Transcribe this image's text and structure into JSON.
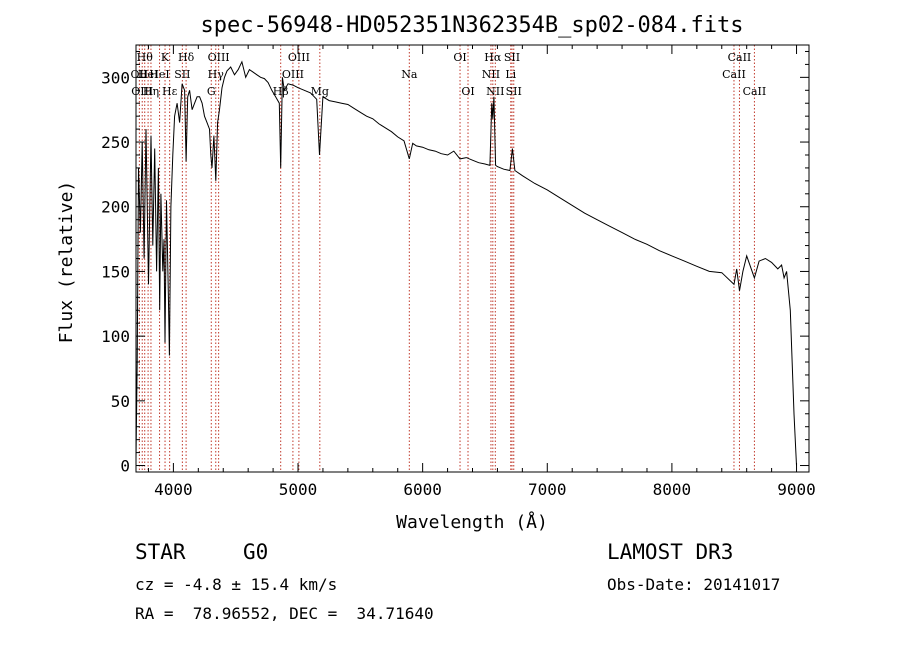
{
  "chart_data": {
    "type": "line",
    "title": "spec-56948-HD052351N362354B_sp02-084.fits",
    "xlabel": "Wavelength (Å)",
    "ylabel": "Flux (relative)",
    "xlim": [
      3700,
      9100
    ],
    "ylim": [
      -5,
      325
    ],
    "xticks": [
      4000,
      5000,
      6000,
      7000,
      8000,
      9000
    ],
    "yticks": [
      0,
      50,
      100,
      150,
      200,
      250,
      300
    ],
    "spectrum": {
      "wavelength": [
        3700,
        3710,
        3720,
        3735,
        3750,
        3765,
        3780,
        3800,
        3820,
        3835,
        3850,
        3865,
        3880,
        3890,
        3900,
        3915,
        3925,
        3933,
        3945,
        3960,
        3968,
        3980,
        3995,
        4010,
        4030,
        4050,
        4070,
        4090,
        4102,
        4115,
        4130,
        4150,
        4170,
        4190,
        4210,
        4230,
        4250,
        4270,
        4290,
        4300,
        4310,
        4325,
        4340,
        4355,
        4370,
        4390,
        4410,
        4430,
        4460,
        4490,
        4520,
        4550,
        4580,
        4610,
        4640,
        4670,
        4700,
        4730,
        4760,
        4790,
        4820,
        4850,
        4861,
        4875,
        4890,
        4920,
        4960,
        5000,
        5050,
        5100,
        5150,
        5172,
        5200,
        5250,
        5300,
        5350,
        5400,
        5450,
        5500,
        5550,
        5600,
        5650,
        5700,
        5750,
        5800,
        5850,
        5893,
        5920,
        5950,
        6000,
        6050,
        6100,
        6150,
        6200,
        6250,
        6300,
        6350,
        6400,
        6450,
        6500,
        6540,
        6555,
        6563,
        6572,
        6585,
        6600,
        6650,
        6700,
        6720,
        6740,
        6800,
        6900,
        7000,
        7100,
        7200,
        7300,
        7400,
        7500,
        7600,
        7700,
        7800,
        7900,
        8000,
        8100,
        8200,
        8300,
        8400,
        8498,
        8520,
        8542,
        8570,
        8600,
        8662,
        8700,
        8750,
        8800,
        8850,
        8880,
        8900,
        8920,
        8950,
        8980,
        9000
      ],
      "flux": [
        5,
        80,
        230,
        180,
        250,
        160,
        260,
        140,
        255,
        170,
        245,
        150,
        230,
        120,
        210,
        150,
        175,
        95,
        205,
        130,
        85,
        200,
        240,
        270,
        280,
        265,
        295,
        290,
        235,
        285,
        290,
        275,
        280,
        285,
        285,
        280,
        270,
        265,
        260,
        240,
        230,
        255,
        220,
        265,
        275,
        292,
        300,
        305,
        308,
        302,
        306,
        312,
        300,
        306,
        304,
        302,
        300,
        299,
        296,
        290,
        285,
        280,
        230,
        300,
        290,
        295,
        294,
        292,
        290,
        288,
        283,
        240,
        285,
        282,
        281,
        280,
        279,
        276,
        273,
        270,
        268,
        264,
        261,
        258,
        254,
        251,
        237,
        249,
        247,
        246,
        244,
        243,
        241,
        240,
        243,
        237,
        238,
        236,
        234,
        233,
        232,
        280,
        268,
        285,
        232,
        231,
        229,
        228,
        245,
        228,
        224,
        218,
        213,
        207,
        201,
        195,
        190,
        185,
        180,
        175,
        171,
        166,
        162,
        158,
        154,
        150,
        149,
        140,
        152,
        135,
        150,
        162,
        145,
        158,
        160,
        157,
        152,
        155,
        145,
        150,
        120,
        40,
        0
      ]
    },
    "lines": [
      {
        "wl": 3727,
        "label": "OII",
        "row": 2
      },
      {
        "wl": 3750,
        "label": "OIII",
        "row": 3
      },
      {
        "wl": 3770,
        "label": "Hθ",
        "row": 1
      },
      {
        "wl": 3797,
        "label": "HeI",
        "row": 2
      },
      {
        "wl": 3820,
        "label": "Hη",
        "row": 3
      },
      {
        "wl": 3889,
        "label": "HeI",
        "row": 2
      },
      {
        "wl": 3933,
        "label": "K",
        "row": 1
      },
      {
        "wl": 3970,
        "label": "Hε",
        "row": 3
      },
      {
        "wl": 4072,
        "label": "SII",
        "row": 2
      },
      {
        "wl": 4102,
        "label": "Hδ",
        "row": 1
      },
      {
        "wl": 4304,
        "label": "G",
        "row": 3
      },
      {
        "wl": 4340,
        "label": "Hγ",
        "row": 2
      },
      {
        "wl": 4363,
        "label": "OIII",
        "row": 1
      },
      {
        "wl": 4861,
        "label": "Hβ",
        "row": 3
      },
      {
        "wl": 4959,
        "label": "OIII",
        "row": 2
      },
      {
        "wl": 5007,
        "label": "OIII",
        "row": 1
      },
      {
        "wl": 5175,
        "label": "Mg",
        "row": 3
      },
      {
        "wl": 5893,
        "label": "Na",
        "row": 2
      },
      {
        "wl": 6300,
        "label": "OI",
        "row": 1
      },
      {
        "wl": 6364,
        "label": "OI",
        "row": 3
      },
      {
        "wl": 6548,
        "label": "NII",
        "row": 2
      },
      {
        "wl": 6563,
        "label": "Hα",
        "row": 1
      },
      {
        "wl": 6583,
        "label": "NII",
        "row": 3
      },
      {
        "wl": 6707,
        "label": "Li",
        "row": 2
      },
      {
        "wl": 6717,
        "label": "SII",
        "row": 1
      },
      {
        "wl": 6731,
        "label": "SII",
        "row": 3
      },
      {
        "wl": 8498,
        "label": "CaII",
        "row": 2
      },
      {
        "wl": 8542,
        "label": "CaII",
        "row": 1
      },
      {
        "wl": 8662,
        "label": "CaII",
        "row": 3
      }
    ]
  },
  "info": {
    "object_class": "STAR",
    "subclass": "G0",
    "survey": "LAMOST DR3",
    "redshift_text": "cz = -4.8 ± 15.4 km/s",
    "obs_date": "Obs-Date: 20141017",
    "coords": "RA =  78.96552, DEC =  34.71640"
  },
  "colors": {
    "line_marker": "#c0392b",
    "spectrum": "#000000",
    "axes": "#000000"
  }
}
